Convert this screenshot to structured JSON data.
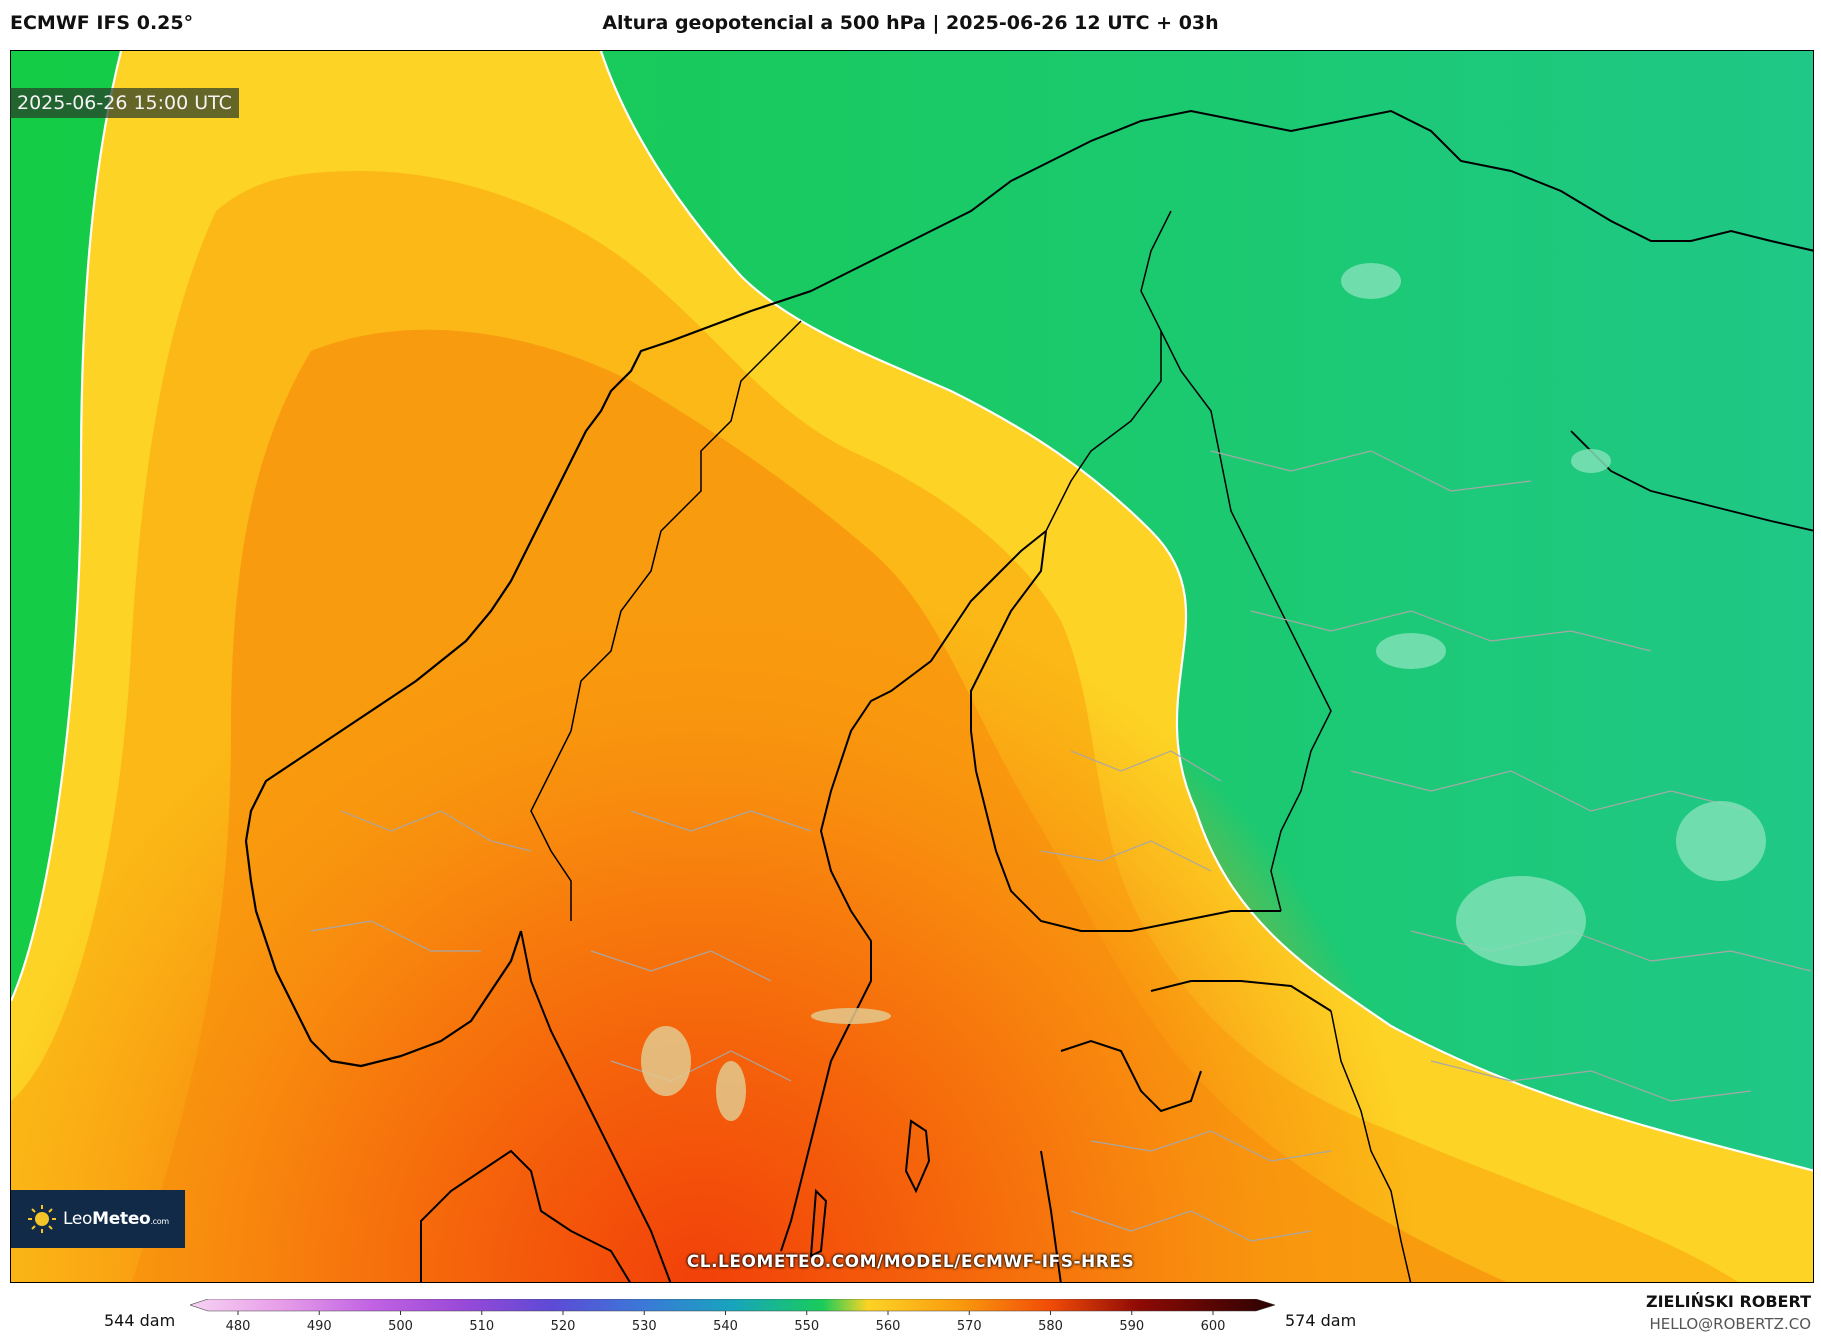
{
  "header": {
    "model": "ECMWF IFS 0.25°",
    "title": "Altura geopotencial a 500 hPa | 2025-06-26 12 UTC + 03h"
  },
  "map": {
    "valid_time": "2025-06-26 15:00 UTC",
    "source_url": "CL.LEOMETEO.COM/MODEL/ECMWF-IFS-HRES",
    "colors": {
      "green": "#19cc5a",
      "teal_green": "#1fca7a",
      "yellow": "#fdd325",
      "orange_light": "#fbbb12",
      "orange": "#f99b0e",
      "orange_dark": "#f6760c",
      "red_orange": "#f24c07",
      "contour": "#ffffff",
      "coastline": "#000000",
      "borders": "#a4a4a4"
    }
  },
  "logo": {
    "name_light": "Leo",
    "name_bold": "Meteo",
    "suffix": ".com",
    "icon": "sun-icon"
  },
  "colorbar": {
    "min_label": "544 dam",
    "max_label": "574 dam",
    "ticks": [
      "480",
      "490",
      "500",
      "510",
      "520",
      "530",
      "540",
      "550",
      "560",
      "570",
      "580",
      "590",
      "600"
    ],
    "stops": [
      "#f6d3f2",
      "#e79ee9",
      "#c163e3",
      "#9a49d8",
      "#5d4ad6",
      "#3b78d8",
      "#17a4bd",
      "#19cc5a",
      "#fdd325",
      "#f99b0e",
      "#f24c07",
      "#8e0a05",
      "#2a0202"
    ]
  },
  "credits": {
    "author": "ZIELIŃSKI ROBERT",
    "email": "HELLO@ROBERTZ.CO"
  }
}
